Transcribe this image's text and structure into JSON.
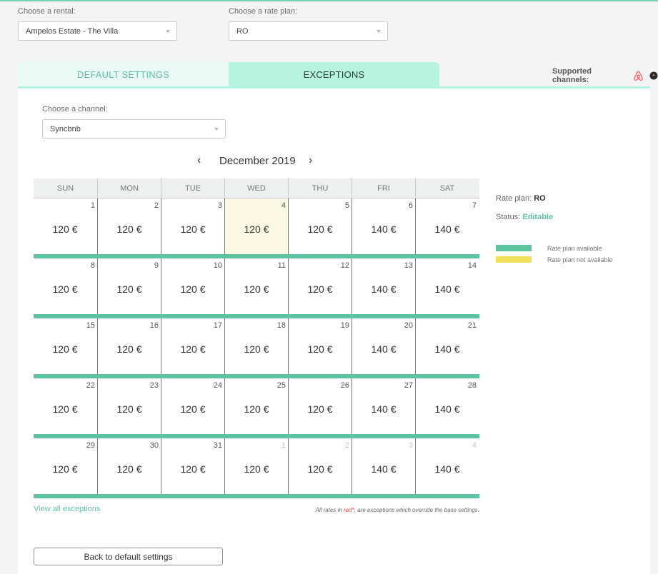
{
  "filters": {
    "rental_label": "Choose a rental:",
    "rental_value": "Ampelos Estate - The Villa",
    "rate_plan_label": "Choose a rate plan:",
    "rate_plan_value": "RO"
  },
  "tabs": [
    {
      "label": "DEFAULT SETTINGS",
      "active": false
    },
    {
      "label": "EXCEPTIONS",
      "active": true
    }
  ],
  "supported_channels": {
    "label": "Supported channels:",
    "icons": [
      "airbnb-icon",
      "channel-dot-icon"
    ],
    "airbnb_color": "#ff5a5f"
  },
  "channel": {
    "label": "Choose a channel:",
    "value": "Syncbnb"
  },
  "calendar": {
    "month": "December 2019",
    "prev_icon": "chevron-left-icon",
    "next_icon": "chevron-right-icon",
    "weekdays": [
      "SUN",
      "MON",
      "TUE",
      "WED",
      "THU",
      "FRI",
      "SAT"
    ],
    "weeks": [
      [
        {
          "day": "1",
          "price": "120 €"
        },
        {
          "day": "2",
          "price": "120 €"
        },
        {
          "day": "3",
          "price": "120 €"
        },
        {
          "day": "4",
          "price": "120 €",
          "today": true
        },
        {
          "day": "5",
          "price": "120 €"
        },
        {
          "day": "6",
          "price": "140 €"
        },
        {
          "day": "7",
          "price": "140 €"
        }
      ],
      [
        {
          "day": "8",
          "price": "120 €"
        },
        {
          "day": "9",
          "price": "120 €"
        },
        {
          "day": "10",
          "price": "120 €"
        },
        {
          "day": "11",
          "price": "120 €"
        },
        {
          "day": "12",
          "price": "120 €"
        },
        {
          "day": "13",
          "price": "140 €"
        },
        {
          "day": "14",
          "price": "140 €"
        }
      ],
      [
        {
          "day": "15",
          "price": "120 €"
        },
        {
          "day": "16",
          "price": "120 €"
        },
        {
          "day": "17",
          "price": "120 €"
        },
        {
          "day": "18",
          "price": "120 €"
        },
        {
          "day": "19",
          "price": "120 €"
        },
        {
          "day": "20",
          "price": "140 €"
        },
        {
          "day": "21",
          "price": "140 €"
        }
      ],
      [
        {
          "day": "22",
          "price": "120 €"
        },
        {
          "day": "23",
          "price": "120 €"
        },
        {
          "day": "24",
          "price": "120 €"
        },
        {
          "day": "25",
          "price": "120 €"
        },
        {
          "day": "26",
          "price": "120 €"
        },
        {
          "day": "27",
          "price": "140 €"
        },
        {
          "day": "28",
          "price": "140 €"
        }
      ],
      [
        {
          "day": "29",
          "price": "120 €"
        },
        {
          "day": "30",
          "price": "120 €"
        },
        {
          "day": "31",
          "price": "120 €"
        },
        {
          "day": "1",
          "price": "120 €",
          "other": true
        },
        {
          "day": "2",
          "price": "120 €",
          "other": true
        },
        {
          "day": "3",
          "price": "140 €",
          "other": true
        },
        {
          "day": "4",
          "price": "140 €",
          "other": true
        }
      ]
    ],
    "colors": {
      "available": "#5ec49f",
      "not_available": "#f0e05a",
      "today_bg": "#faf8e3"
    }
  },
  "info": {
    "rate_plan_label": "Rate plan:",
    "rate_plan_value": "RO",
    "status_label": "Status:",
    "status_value": "Editable",
    "legend": [
      {
        "label": "Rate plan available",
        "color": "#5ec49f"
      },
      {
        "label": "Rate plan not available",
        "color": "#f0e05a"
      }
    ]
  },
  "footer": {
    "view_all": "View all exceptions",
    "note_before": "All rates in ",
    "note_red": "red*",
    "note_after": ", are exceptions which override the base settings.",
    "back_button": "Back to default settings"
  }
}
